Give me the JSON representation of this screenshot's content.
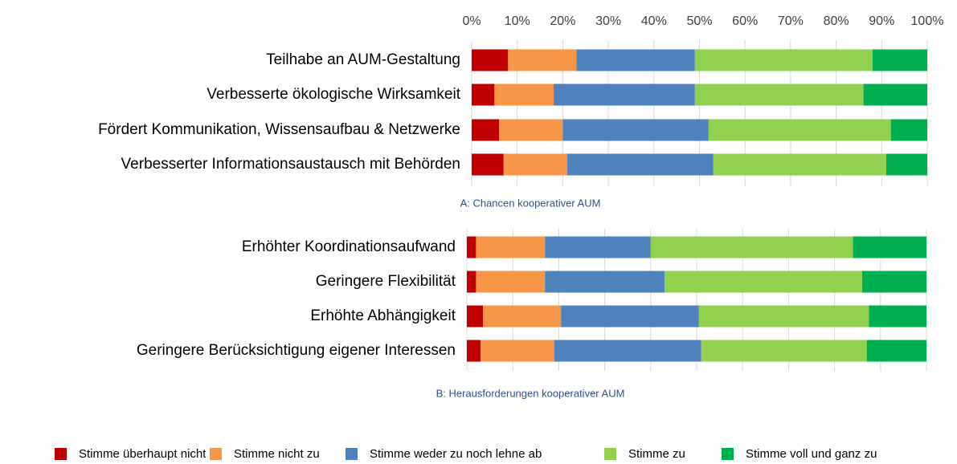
{
  "chart_data": [
    {
      "type": "bar",
      "orientation": "horizontal",
      "stacked": true,
      "title": "A: Chancen kooperativer AUM",
      "categories": [
        "Teilhabe an AUM-Gestaltung",
        "Verbesserte ökologische Wirksamkeit",
        "Fördert Kommunikation, Wissensaufbau & Netzwerke",
        "Verbesserter Informationsaustausch mit Behörden"
      ],
      "series": [
        {
          "color": "#c00000",
          "values": [
            8,
            5,
            6,
            7
          ]
        },
        {
          "color": "#f79646",
          "values": [
            15,
            13,
            14,
            14
          ]
        },
        {
          "color": "#4f81bd",
          "values": [
            26,
            31,
            32,
            32
          ]
        },
        {
          "color": "#92d050",
          "values": [
            39,
            37,
            40,
            38
          ]
        },
        {
          "color": "#00b050",
          "values": [
            12,
            14,
            8,
            9
          ]
        }
      ],
      "xlim": [
        0,
        100
      ],
      "xticks": [
        {
          "value": 0,
          "label": "0%"
        },
        {
          "value": 10,
          "label": "10%"
        },
        {
          "value": 20,
          "label": "20%"
        },
        {
          "value": 30,
          "label": "30%"
        },
        {
          "value": 40,
          "label": "40%"
        },
        {
          "value": 50,
          "label": "50%"
        },
        {
          "value": 60,
          "label": "60%"
        },
        {
          "value": 70,
          "label": "70%"
        },
        {
          "value": 80,
          "label": "80%"
        },
        {
          "value": 90,
          "label": "90%"
        },
        {
          "value": 100,
          "label": "100%"
        }
      ],
      "grid": true
    },
    {
      "type": "bar",
      "orientation": "horizontal",
      "stacked": true,
      "title": "B: Herausforderungen kooperativer AUM",
      "categories": [
        "Erhöhter Koordinationsaufwand",
        "Geringere Flexibilität",
        "Erhöhte Abhängigkeit",
        "Geringere Berücksichtigung eigener Interessen"
      ],
      "series": [
        {
          "color": "#c00000",
          "values": [
            2,
            2,
            3.5,
            3
          ]
        },
        {
          "color": "#f79646",
          "values": [
            15,
            15,
            17,
            16
          ]
        },
        {
          "color": "#4f81bd",
          "values": [
            23,
            26,
            30,
            32
          ]
        },
        {
          "color": "#92d050",
          "values": [
            44,
            43,
            37,
            36
          ]
        },
        {
          "color": "#00b050",
          "values": [
            16,
            14,
            12.5,
            13
          ]
        }
      ],
      "xlim": [
        0,
        100
      ],
      "xticks": [
        0,
        10,
        20,
        30,
        40,
        50,
        60,
        70,
        80,
        90,
        100
      ],
      "grid": true
    }
  ],
  "legend": [
    {
      "name": "Stimme überhaupt nicht zu",
      "color": "#c00000"
    },
    {
      "name": "Stimme nicht zu",
      "color": "#f79646"
    },
    {
      "name": "Stimme weder zu noch lehne ab",
      "color": "#4f81bd"
    },
    {
      "name": "Stimme zu",
      "color": "#92d050"
    },
    {
      "name": "Stimme voll und ganz zu",
      "color": "#00b050"
    }
  ]
}
